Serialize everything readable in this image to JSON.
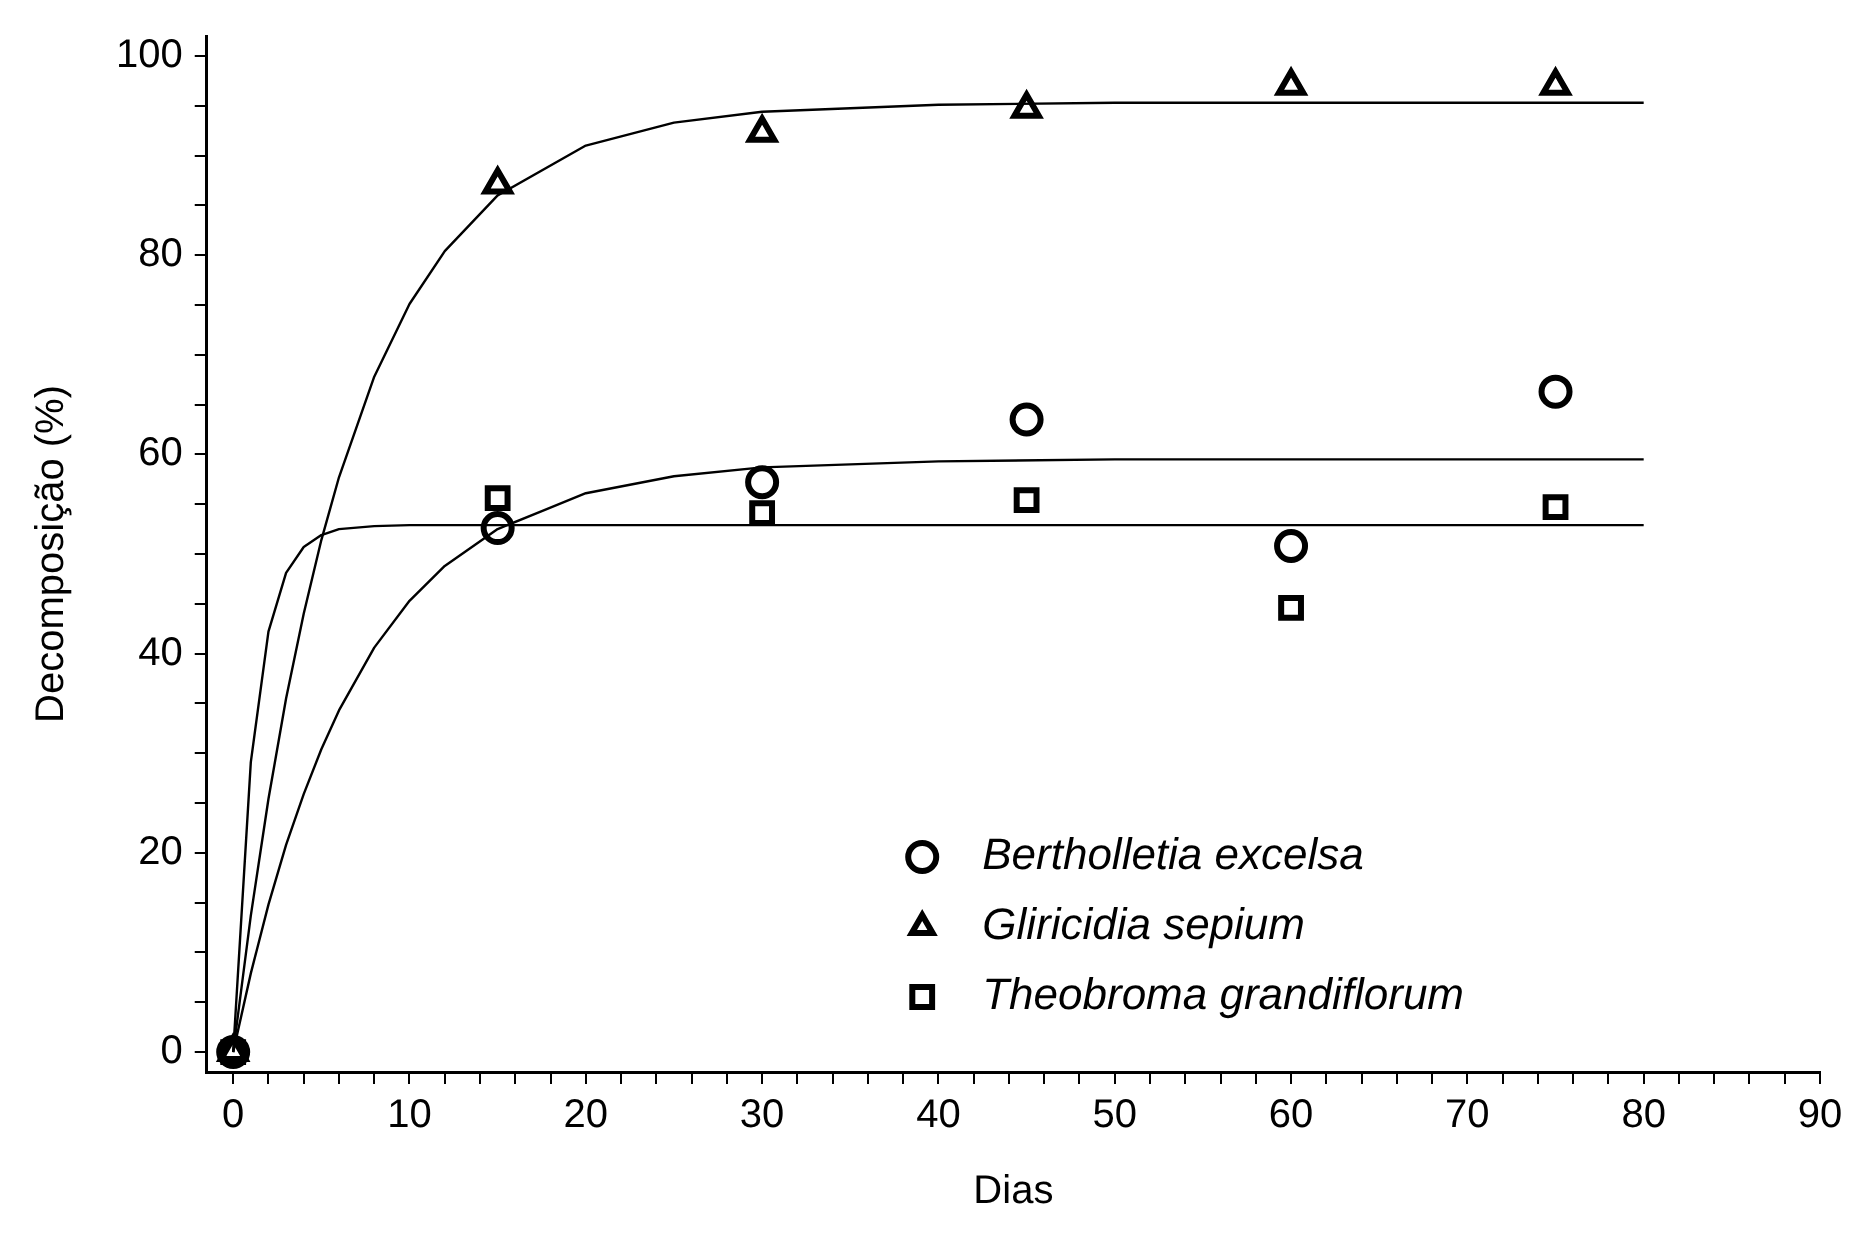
{
  "chart_data": {
    "type": "scatter",
    "xlabel": "Dias",
    "ylabel": "Decomposição (%)",
    "xlim": [
      -1.5,
      90
    ],
    "ylim": [
      -2,
      102
    ],
    "xticks": [
      0,
      {
        "value": 2,
        "label": null
      },
      {
        "value": 4,
        "label": null
      },
      {
        "value": 6,
        "label": null
      },
      {
        "value": 8,
        "label": null
      },
      10,
      {
        "value": 12,
        "label": null
      },
      {
        "value": 14,
        "label": null
      },
      {
        "value": 16,
        "label": null
      },
      {
        "value": 18,
        "label": null
      },
      20,
      {
        "value": 22,
        "label": null
      },
      {
        "value": 24,
        "label": null
      },
      {
        "value": 26,
        "label": null
      },
      {
        "value": 28,
        "label": null
      },
      30,
      {
        "value": 32,
        "label": null
      },
      {
        "value": 34,
        "label": null
      },
      {
        "value": 36,
        "label": null
      },
      {
        "value": 38,
        "label": null
      },
      40,
      {
        "value": 42,
        "label": null
      },
      {
        "value": 44,
        "label": null
      },
      {
        "value": 46,
        "label": null
      },
      {
        "value": 48,
        "label": null
      },
      50,
      {
        "value": 52,
        "label": null
      },
      {
        "value": 54,
        "label": null
      },
      {
        "value": 56,
        "label": null
      },
      {
        "value": 58,
        "label": null
      },
      60,
      {
        "value": 62,
        "label": null
      },
      {
        "value": 64,
        "label": null
      },
      {
        "value": 66,
        "label": null
      },
      {
        "value": 68,
        "label": null
      },
      70,
      {
        "value": 72,
        "label": null
      },
      {
        "value": 74,
        "label": null
      },
      {
        "value": 76,
        "label": null
      },
      {
        "value": 78,
        "label": null
      },
      80,
      {
        "value": 82,
        "label": null
      },
      {
        "value": 84,
        "label": null
      },
      {
        "value": 86,
        "label": null
      },
      {
        "value": 88,
        "label": null
      },
      90
    ],
    "yticks": [
      0,
      {
        "value": 5,
        "label": null
      },
      {
        "value": 10,
        "label": null
      },
      {
        "value": 15,
        "label": null
      },
      20,
      {
        "value": 25,
        "label": null
      },
      {
        "value": 30,
        "label": null
      },
      {
        "value": 35,
        "label": null
      },
      40,
      {
        "value": 45,
        "label": null
      },
      {
        "value": 50,
        "label": null
      },
      {
        "value": 55,
        "label": null
      },
      60,
      {
        "value": 65,
        "label": null
      },
      {
        "value": 70,
        "label": null
      },
      {
        "value": 75,
        "label": null
      },
      80,
      {
        "value": 85,
        "label": null
      },
      {
        "value": 90,
        "label": null
      },
      {
        "value": 95,
        "label": null
      },
      100
    ],
    "grid": false,
    "legend": "bottom right",
    "series": [
      {
        "name": "Bertholletia excelsa",
        "marker": "circle",
        "color": "#000000",
        "x": [
          0,
          15,
          30,
          45,
          60,
          75
        ],
        "values": [
          0,
          52.6,
          57.2,
          63.5,
          50.8,
          66.3
        ]
      },
      {
        "name": "Gliricidia sepium",
        "marker": "triangle",
        "color": "#000000",
        "x": [
          0,
          15,
          30,
          45,
          60,
          75
        ],
        "values": [
          0,
          87.1,
          92.3,
          94.7,
          97.0,
          97.0
        ]
      },
      {
        "name": "Theobroma grandiflorum",
        "marker": "square",
        "color": "#000000",
        "x": [
          0,
          15,
          30,
          45,
          60,
          75
        ],
        "values": [
          0,
          55.6,
          54.1,
          55.4,
          44.6,
          54.7
        ]
      },
      {
        "type": "line",
        "marker": "none",
        "color": "#000000",
        "x": [
          0,
          1,
          2,
          3,
          4,
          5,
          6,
          8,
          10,
          12,
          15,
          20,
          25,
          30,
          40,
          50,
          60,
          80
        ],
        "values": [
          0,
          13.7,
          25.4,
          35.5,
          44.0,
          51.4,
          57.7,
          67.8,
          75.1,
          80.4,
          86.0,
          91.0,
          93.3,
          94.4,
          95.1,
          95.3,
          95.3,
          95.3
        ]
      },
      {
        "type": "line",
        "marker": "none",
        "color": "#000000",
        "x": [
          0,
          1,
          2,
          3,
          4,
          5,
          6,
          8,
          10,
          12,
          15,
          20,
          25,
          30,
          40,
          50,
          60,
          80
        ],
        "values": [
          0,
          7.9,
          14.8,
          20.8,
          25.9,
          30.4,
          34.3,
          40.6,
          45.3,
          48.8,
          52.5,
          56.1,
          57.8,
          58.7,
          59.3,
          59.5,
          59.5,
          59.5
        ]
      },
      {
        "type": "line",
        "marker": "none",
        "color": "#000000",
        "x": [
          0,
          1,
          2,
          3,
          4,
          5,
          6,
          8,
          10,
          15,
          20,
          30,
          40,
          60,
          80
        ],
        "values": [
          0,
          29.1,
          42.2,
          48.1,
          50.7,
          51.9,
          52.5,
          52.8,
          52.9,
          52.9,
          52.9,
          52.9,
          52.9,
          52.9,
          52.9
        ]
      }
    ]
  }
}
